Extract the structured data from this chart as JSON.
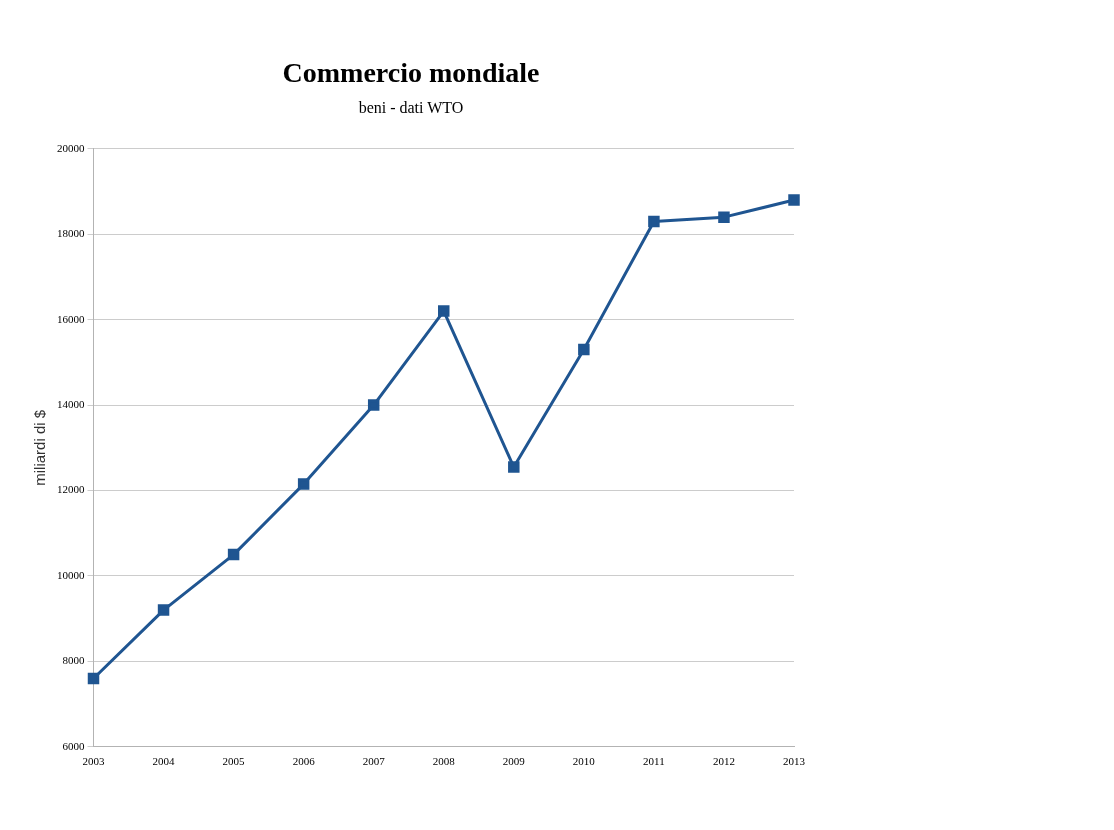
{
  "chart_data": {
    "type": "line",
    "title": "Commercio mondiale",
    "subtitle": "beni - dati WTO",
    "ylabel": "miliardi di $",
    "categories": [
      "2003",
      "2004",
      "2005",
      "2006",
      "2007",
      "2008",
      "2009",
      "2010",
      "2011",
      "2012",
      "2013"
    ],
    "series": [
      {
        "color": "#1f5591",
        "values": [
          7600,
          9200,
          10500,
          12150,
          14000,
          16200,
          12550,
          15300,
          18300,
          18400,
          18800
        ]
      }
    ],
    "ylim": [
      6000,
      20000
    ],
    "yticks": [
      6000,
      8000,
      10000,
      12000,
      14000,
      16000,
      18000,
      20000
    ],
    "grid": "y",
    "legend": false,
    "marker": "square",
    "line_style": "solid"
  }
}
